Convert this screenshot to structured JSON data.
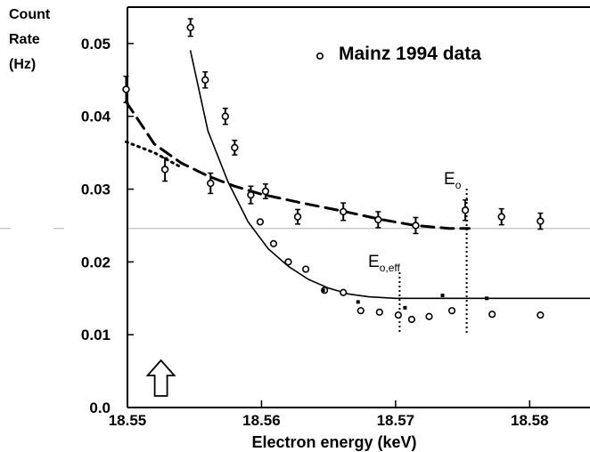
{
  "chart_data": {
    "type": "scatter",
    "ylabel_lines": [
      "Count",
      "Rate",
      "(Hz)"
    ],
    "xlabel": "Electron energy (keV)",
    "xlim": [
      18.55,
      18.5845
    ],
    "ylim": [
      0.0,
      0.055
    ],
    "x_ticks": [
      "18.55",
      "18.56",
      "18.57",
      "18.58"
    ],
    "x_tick_values": [
      18.55,
      18.56,
      18.57,
      18.58
    ],
    "y_ticks": [
      "0.0",
      "0.01",
      "0.02",
      "0.03",
      "0.04",
      "0.05"
    ],
    "y_tick_values": [
      0.0,
      0.01,
      0.02,
      0.03,
      0.04,
      0.05
    ],
    "legend": "Mainz 1994 data",
    "annotations": {
      "e0_main": "E",
      "e0_sub": "o",
      "e0eff_main": "E",
      "e0eff_sub": "o,eff"
    },
    "series": [
      {
        "name": "Mainz 1994 data",
        "style": "open-circles-errorbars",
        "x": [
          18.5499,
          18.5528,
          18.5547,
          18.5558,
          18.5562,
          18.5573,
          18.558,
          18.5592,
          18.5603,
          18.5627,
          18.5661,
          18.5687,
          18.5715,
          18.5752,
          18.5779,
          18.5808
        ],
        "y": [
          0.0437,
          0.0327,
          0.0522,
          0.045,
          0.0308,
          0.04,
          0.0357,
          0.0292,
          0.0297,
          0.0262,
          0.0269,
          0.0258,
          0.025,
          0.0271,
          0.0262,
          0.0256
        ],
        "err": [
          0.0018,
          0.0016,
          0.0012,
          0.0011,
          0.0014,
          0.0011,
          0.001,
          0.0012,
          0.001,
          0.001,
          0.0012,
          0.0011,
          0.0011,
          0.0014,
          0.0011,
          0.0011
        ]
      },
      {
        "name": "",
        "style": "open-circles",
        "x": [
          18.5599,
          18.5609,
          18.562,
          18.5633,
          18.5647,
          18.5661,
          18.5674,
          18.5688,
          18.5702,
          18.5712,
          18.5725,
          18.5742,
          18.5772,
          18.5808
        ],
        "y": [
          0.0255,
          0.0225,
          0.02,
          0.019,
          0.0161,
          0.0158,
          0.0133,
          0.0131,
          0.0127,
          0.0121,
          0.0125,
          0.0133,
          0.0128,
          0.0127
        ]
      },
      {
        "name": "",
        "style": "filled-dots",
        "x": [
          18.5646,
          18.5672,
          18.5707,
          18.5735,
          18.5768
        ],
        "y": [
          0.0161,
          0.0145,
          0.0137,
          0.0154,
          0.015
        ]
      },
      {
        "name": "",
        "style": "solid-fit",
        "x": [
          18.5547,
          18.556,
          18.5575,
          18.559,
          18.5605,
          18.562,
          18.5635,
          18.565,
          18.5665,
          18.568,
          18.57,
          18.5725,
          18.575,
          18.58,
          18.5845
        ],
        "y": [
          0.049,
          0.038,
          0.031,
          0.0255,
          0.0218,
          0.0194,
          0.0176,
          0.0164,
          0.0156,
          0.0152,
          0.015,
          0.015,
          0.015,
          0.015,
          0.015
        ]
      },
      {
        "name": "",
        "style": "dashed-fit",
        "x": [
          18.5499,
          18.552,
          18.554,
          18.556,
          18.558,
          18.56,
          18.563,
          18.566,
          18.569,
          18.5715,
          18.574,
          18.5755
        ],
        "y": [
          0.042,
          0.0362,
          0.0336,
          0.0318,
          0.0304,
          0.0293,
          0.0281,
          0.027,
          0.0258,
          0.025,
          0.0246,
          0.0246
        ]
      },
      {
        "name": "",
        "style": "dotted-fit",
        "x": [
          18.5499,
          18.552,
          18.554
        ],
        "y": [
          0.0365,
          0.035,
          0.033
        ]
      }
    ],
    "markers": {
      "e0_x": 18.5753,
      "e0eff_x": 18.5703,
      "reference_y": 0.0246,
      "arrow_x": 18.5525
    },
    "colors": {
      "axis": "#000000",
      "reference_line": "#b0b0b0",
      "curves": "#000000"
    }
  }
}
